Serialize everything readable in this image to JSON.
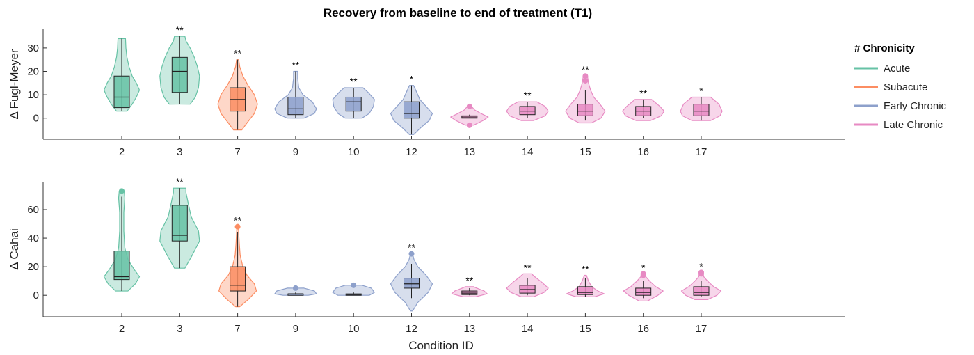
{
  "chart_data": {
    "type": "violin",
    "title": "Recovery from baseline to end of treatment (T1)",
    "xlabel": "Condition ID",
    "categories": [
      "2",
      "3",
      "7",
      "9",
      "10",
      "12",
      "13",
      "14",
      "15",
      "16",
      "17"
    ],
    "category_groups": [
      "Acute",
      "Acute",
      "Subacute",
      "Early Chronic",
      "Early Chronic",
      "Early Chronic",
      "Late Chronic",
      "Late Chronic",
      "Late Chronic",
      "Late Chronic",
      "Late Chronic"
    ],
    "legend": {
      "title": "# Chronicity",
      "position": "right",
      "entries": [
        {
          "label": "Acute",
          "color": "#66C2A5"
        },
        {
          "label": "Subacute",
          "color": "#FC8D62"
        },
        {
          "label": "Early Chronic",
          "color": "#8DA0CB"
        },
        {
          "label": "Late Chronic",
          "color": "#E78AC3"
        }
      ]
    },
    "panels": [
      {
        "ylabel": "Δ Fugl-Meyer",
        "ylim": [
          -9,
          38
        ],
        "yticks": [
          0,
          10,
          20,
          30
        ],
        "groups": [
          {
            "cat": "2",
            "min": 3,
            "q1": 4.5,
            "median": 9,
            "q3": 18,
            "max": 34,
            "sig": "",
            "outliers": [],
            "density": [
              [
                3,
                0.25
              ],
              [
                6,
                0.5
              ],
              [
                9,
                0.7
              ],
              [
                12,
                0.85
              ],
              [
                15,
                0.7
              ],
              [
                18,
                0.5
              ],
              [
                22,
                0.35
              ],
              [
                26,
                0.25
              ],
              [
                30,
                0.2
              ],
              [
                34,
                0.18
              ]
            ]
          },
          {
            "cat": "3",
            "min": 6,
            "q1": 11,
            "median": 20,
            "q3": 26,
            "max": 35,
            "sig": "**",
            "outliers": [],
            "density": [
              [
                6,
                0.5
              ],
              [
                9,
                0.75
              ],
              [
                13,
                0.9
              ],
              [
                18,
                0.95
              ],
              [
                22,
                0.85
              ],
              [
                26,
                0.7
              ],
              [
                30,
                0.5
              ],
              [
                33,
                0.3
              ],
              [
                35,
                0.25
              ]
            ]
          },
          {
            "cat": "7",
            "min": -5,
            "q1": 3,
            "median": 8,
            "q3": 13,
            "max": 25,
            "sig": "**",
            "outliers": [],
            "density": [
              [
                -5,
                0.2
              ],
              [
                -2,
                0.45
              ],
              [
                2,
                0.8
              ],
              [
                6,
                0.95
              ],
              [
                10,
                0.8
              ],
              [
                14,
                0.5
              ],
              [
                18,
                0.25
              ],
              [
                22,
                0.1
              ],
              [
                25,
                0.05
              ]
            ]
          },
          {
            "cat": "9",
            "min": 0,
            "q1": 1.5,
            "median": 4,
            "q3": 9,
            "max": 20,
            "sig": "**",
            "outliers": [],
            "density": [
              [
                0,
                0.4
              ],
              [
                2,
                0.9
              ],
              [
                4,
                1.0
              ],
              [
                7,
                0.8
              ],
              [
                10,
                0.35
              ],
              [
                13,
                0.15
              ],
              [
                17,
                0.1
              ],
              [
                20,
                0.1
              ]
            ]
          },
          {
            "cat": "10",
            "min": 0,
            "q1": 3,
            "median": 7,
            "q3": 9,
            "max": 13,
            "sig": "**",
            "outliers": [],
            "density": [
              [
                0,
                0.4
              ],
              [
                2,
                0.75
              ],
              [
                5,
                0.95
              ],
              [
                8,
                1.0
              ],
              [
                11,
                0.7
              ],
              [
                13,
                0.45
              ]
            ]
          },
          {
            "cat": "12",
            "min": -7,
            "q1": 0,
            "median": 2,
            "q3": 7,
            "max": 14,
            "sig": "*",
            "outliers": [],
            "density": [
              [
                -7,
                0.1
              ],
              [
                -4,
                0.45
              ],
              [
                -1,
                0.85
              ],
              [
                2,
                1.0
              ],
              [
                5,
                0.7
              ],
              [
                8,
                0.4
              ],
              [
                11,
                0.25
              ],
              [
                14,
                0.1
              ]
            ]
          },
          {
            "cat": "13",
            "min": 0,
            "q1": 0,
            "median": 0.5,
            "q3": 1,
            "max": 1.5,
            "sig": "",
            "outliers": [
              5,
              -3
            ],
            "density": [
              [
                -3,
                0.2
              ],
              [
                -1,
                0.65
              ],
              [
                0.5,
                0.9
              ],
              [
                2,
                0.55
              ],
              [
                3.5,
                0.25
              ],
              [
                5,
                0.1
              ]
            ]
          },
          {
            "cat": "14",
            "min": 0,
            "q1": 1.5,
            "median": 3,
            "q3": 5,
            "max": 7,
            "sig": "**",
            "outliers": [],
            "density": [
              [
                -1,
                0.3
              ],
              [
                1,
                0.85
              ],
              [
                3,
                1.0
              ],
              [
                5,
                0.85
              ],
              [
                7,
                0.45
              ]
            ]
          },
          {
            "cat": "15",
            "min": -1,
            "q1": 1,
            "median": 3,
            "q3": 6,
            "max": 12,
            "sig": "**",
            "outliers": [
              16,
              18
            ],
            "density": [
              [
                -2,
                0.3
              ],
              [
                0,
                0.75
              ],
              [
                3,
                0.95
              ],
              [
                6,
                0.7
              ],
              [
                9,
                0.4
              ],
              [
                12,
                0.25
              ],
              [
                15,
                0.15
              ],
              [
                18,
                0.1
              ]
            ]
          },
          {
            "cat": "16",
            "min": 0,
            "q1": 1,
            "median": 3,
            "q3": 5,
            "max": 8,
            "sig": "**",
            "outliers": [],
            "density": [
              [
                -1,
                0.35
              ],
              [
                1,
                0.85
              ],
              [
                3,
                1.0
              ],
              [
                5,
                0.8
              ],
              [
                8,
                0.4
              ]
            ]
          },
          {
            "cat": "17",
            "min": -1,
            "q1": 1,
            "median": 3,
            "q3": 6,
            "max": 9,
            "sig": "*",
            "outliers": [],
            "density": [
              [
                -1,
                0.45
              ],
              [
                1,
                0.9
              ],
              [
                3,
                1.0
              ],
              [
                6,
                0.85
              ],
              [
                9,
                0.45
              ]
            ]
          }
        ]
      },
      {
        "ylabel": "Δ Cahai",
        "ylim": [
          -15,
          79
        ],
        "yticks": [
          0,
          20,
          40,
          60
        ],
        "groups": [
          {
            "cat": "2",
            "min": 3,
            "q1": 11,
            "median": 13,
            "q3": 31,
            "max": 69,
            "sig": "",
            "outliers": [
              73
            ],
            "density": [
              [
                3,
                0.3
              ],
              [
                8,
                0.65
              ],
              [
                13,
                0.85
              ],
              [
                18,
                0.6
              ],
              [
                25,
                0.3
              ],
              [
                33,
                0.15
              ],
              [
                45,
                0.1
              ],
              [
                58,
                0.1
              ],
              [
                68,
                0.15
              ],
              [
                73,
                0.12
              ]
            ]
          },
          {
            "cat": "3",
            "min": 19,
            "q1": 38,
            "median": 42,
            "q3": 63,
            "max": 75,
            "sig": "**",
            "outliers": [],
            "density": [
              [
                19,
                0.25
              ],
              [
                28,
                0.6
              ],
              [
                38,
                0.95
              ],
              [
                45,
                0.9
              ],
              [
                55,
                0.55
              ],
              [
                65,
                0.4
              ],
              [
                72,
                0.3
              ],
              [
                75,
                0.3
              ]
            ]
          },
          {
            "cat": "7",
            "min": -8,
            "q1": 3,
            "median": 7,
            "q3": 20,
            "max": 44,
            "sig": "**",
            "outliers": [
              48
            ],
            "density": [
              [
                -8,
                0.1
              ],
              [
                -3,
                0.5
              ],
              [
                3,
                0.9
              ],
              [
                8,
                0.8
              ],
              [
                14,
                0.45
              ],
              [
                20,
                0.25
              ],
              [
                28,
                0.12
              ],
              [
                36,
                0.08
              ],
              [
                44,
                0.05
              ],
              [
                48,
                0.04
              ]
            ]
          },
          {
            "cat": "9",
            "min": 0,
            "q1": 0,
            "median": 1,
            "q3": 1,
            "max": 2,
            "sig": "",
            "outliers": [
              5
            ],
            "density": [
              [
                0,
                0.6
              ],
              [
                1,
                1.0
              ],
              [
                3,
                0.9
              ],
              [
                5,
                0.4
              ]
            ]
          },
          {
            "cat": "10",
            "min": 0,
            "q1": 0,
            "median": 0.5,
            "q3": 1,
            "max": 2,
            "sig": "",
            "outliers": [
              7
            ],
            "density": [
              [
                0,
                0.75
              ],
              [
                2,
                1.0
              ],
              [
                5,
                0.85
              ],
              [
                7,
                0.4
              ]
            ]
          },
          {
            "cat": "12",
            "min": -2,
            "q1": 5,
            "median": 8,
            "q3": 12,
            "max": 22,
            "sig": "**",
            "outliers": [
              29
            ],
            "density": [
              [
                -11,
                0.05
              ],
              [
                -5,
                0.3
              ],
              [
                2,
                0.8
              ],
              [
                8,
                1.0
              ],
              [
                14,
                0.7
              ],
              [
                20,
                0.3
              ],
              [
                25,
                0.12
              ],
              [
                29,
                0.05
              ]
            ]
          },
          {
            "cat": "13",
            "min": 0,
            "q1": 0.5,
            "median": 1.5,
            "q3": 3,
            "max": 5,
            "sig": "**",
            "outliers": [],
            "density": [
              [
                -1,
                0.3
              ],
              [
                1,
                0.85
              ],
              [
                3,
                0.7
              ],
              [
                5,
                0.35
              ],
              [
                6,
                0.2
              ]
            ]
          },
          {
            "cat": "14",
            "min": 0,
            "q1": 1.5,
            "median": 4,
            "q3": 7,
            "max": 12,
            "sig": "**",
            "outliers": [],
            "density": [
              [
                -1,
                0.3
              ],
              [
                2,
                0.8
              ],
              [
                5,
                1.0
              ],
              [
                9,
                0.7
              ],
              [
                13,
                0.35
              ],
              [
                15,
                0.2
              ]
            ]
          },
          {
            "cat": "15",
            "min": -1,
            "q1": 0.5,
            "median": 2,
            "q3": 6,
            "max": 12,
            "sig": "**",
            "outliers": [],
            "density": [
              [
                -1,
                0.45
              ],
              [
                1,
                0.9
              ],
              [
                3,
                0.6
              ],
              [
                6,
                0.3
              ],
              [
                10,
                0.15
              ],
              [
                14,
                0.05
              ]
            ]
          },
          {
            "cat": "16",
            "min": -2,
            "q1": 0,
            "median": 2,
            "q3": 5,
            "max": 10,
            "sig": "*",
            "outliers": [
              14,
              15
            ],
            "density": [
              [
                -4,
                0.2
              ],
              [
                0,
                0.7
              ],
              [
                3,
                0.95
              ],
              [
                6,
                0.6
              ],
              [
                10,
                0.3
              ],
              [
                13,
                0.12
              ],
              [
                15,
                0.08
              ]
            ]
          },
          {
            "cat": "17",
            "min": -1,
            "q1": 0,
            "median": 2,
            "q3": 6,
            "max": 10,
            "sig": "*",
            "outliers": [
              15,
              16
            ],
            "density": [
              [
                -3,
                0.3
              ],
              [
                0,
                0.75
              ],
              [
                3,
                0.95
              ],
              [
                6,
                0.6
              ],
              [
                10,
                0.3
              ],
              [
                13,
                0.12
              ],
              [
                16,
                0.08
              ]
            ]
          }
        ]
      }
    ]
  }
}
